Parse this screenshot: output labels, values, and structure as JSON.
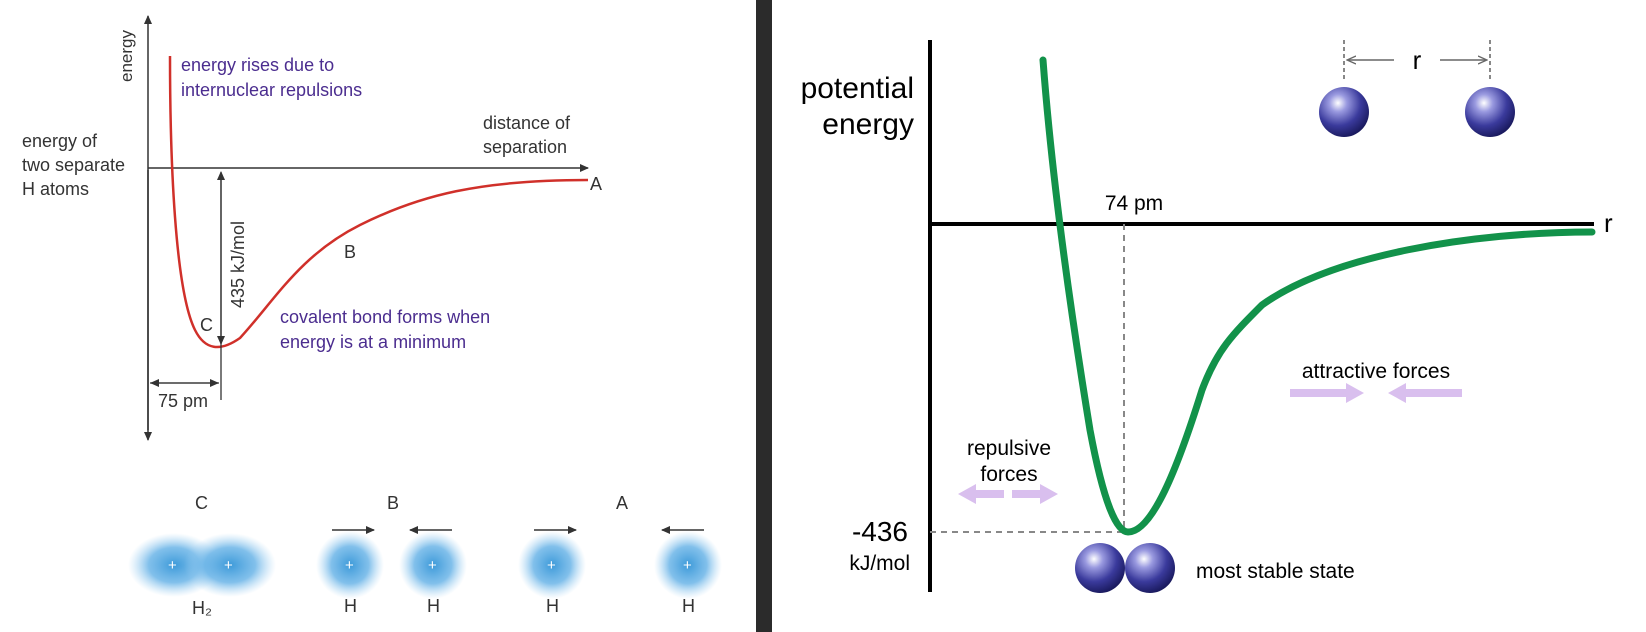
{
  "left_diagram": {
    "y_axis_label": "energy",
    "x_axis_label_line1": "distance of",
    "x_axis_label_line2": "separation",
    "baseline_label_line1": "energy of",
    "baseline_label_line2": "two separate",
    "baseline_label_line3": "H atoms",
    "repulsion_note_line1": "energy rises due to",
    "repulsion_note_line2": "internuclear repulsions",
    "bond_note_line1": "covalent bond forms when",
    "bond_note_line2": "energy is at a minimum",
    "well_depth_label": "435 kJ/mol",
    "bond_length_label": "75 pm",
    "point_labels": {
      "a": "A",
      "b": "B",
      "c": "C"
    },
    "atom_diagrams": {
      "c": {
        "title": "C",
        "labels": [
          "H₂"
        ],
        "charge": "+"
      },
      "b": {
        "title": "B",
        "labels": [
          "H",
          "H"
        ],
        "charge": "+"
      },
      "a": {
        "title": "A",
        "labels": [
          "H",
          "H"
        ],
        "charge": "+"
      }
    },
    "colors": {
      "curve": "#d0302a",
      "note_text": "#4b2d8f",
      "atom_glow": "#3d9ad9",
      "axis": "#333333"
    }
  },
  "right_diagram": {
    "y_axis_label_line1": "potential",
    "y_axis_label_line2": "energy",
    "x_axis_label": "r",
    "bond_length_label": "74 pm",
    "min_energy_value": "-436",
    "min_energy_unit": "kJ/mol",
    "separation_label": "r",
    "attractive_label": "attractive forces",
    "repulsive_label_line1": "repulsive",
    "repulsive_label_line2": "forces",
    "stable_label": "most stable state",
    "colors": {
      "curve": "#12924a",
      "force_arrow": "#d9bfee",
      "sphere": "#3a3a9c",
      "guide": "#888888"
    }
  }
}
